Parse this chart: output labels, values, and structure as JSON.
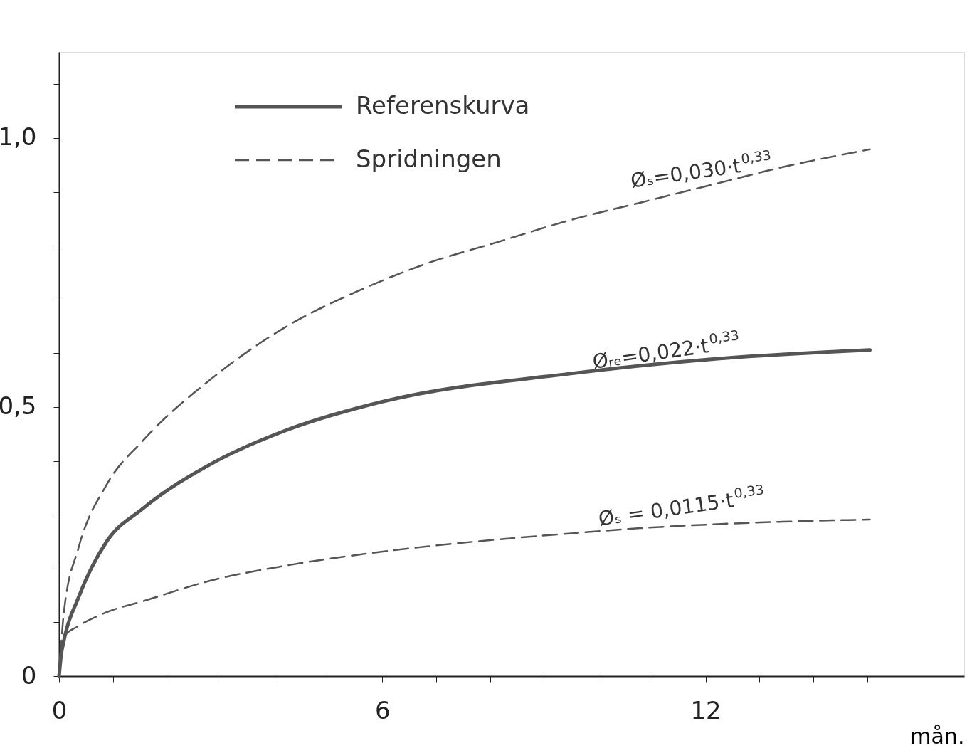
{
  "chart_data": {
    "type": "line",
    "xlabel": "mån.",
    "xlim": [
      0,
      16.8
    ],
    "ylim": [
      0,
      1.16
    ],
    "xticks": [
      0,
      {
        "value": 1,
        "label": null
      },
      {
        "value": 2,
        "label": null
      },
      {
        "value": 3,
        "label": null
      },
      {
        "value": 4,
        "label": null
      },
      {
        "value": 5,
        "label": null
      },
      6,
      {
        "value": 7,
        "label": null
      },
      {
        "value": 8,
        "label": null
      },
      {
        "value": 9,
        "label": null
      },
      {
        "value": 10,
        "label": null
      },
      {
        "value": 11,
        "label": null
      },
      12,
      {
        "value": 13,
        "label": null
      },
      {
        "value": 14,
        "label": null
      },
      {
        "value": 15,
        "label": null
      }
    ],
    "yticks": [
      0,
      {
        "value": 0.1,
        "label": null
      },
      {
        "value": 0.2,
        "label": null
      },
      {
        "value": 0.3,
        "label": null
      },
      {
        "value": 0.4,
        "label": null
      },
      {
        "value": 0.5,
        "label": "0,5"
      },
      {
        "value": 0.6,
        "label": null
      },
      {
        "value": 0.7,
        "label": null
      },
      {
        "value": 0.8,
        "label": null
      },
      {
        "value": 0.9,
        "label": null
      },
      {
        "value": 1.0,
        "label": "1,0"
      },
      {
        "value": 1.1,
        "label": null
      }
    ],
    "grid": false,
    "legend": "top left",
    "marker": "none",
    "series": [
      {
        "name": "Referenskurva",
        "color": "#555555",
        "line_style": "solid",
        "x": [
          0,
          0.04,
          0.09,
          0.36,
          0.89,
          1.55,
          2.87,
          4.19,
          6,
          9.47,
          12.11,
          15.05
        ],
        "values": [
          0,
          0.04,
          0.066,
          0.146,
          0.251,
          0.311,
          0.397,
          0.456,
          0.51,
          0.562,
          0.589,
          0.606
        ]
      },
      {
        "name": "Spridningen",
        "color": "#555555",
        "line_style": "dashed",
        "x": [
          0,
          0.09,
          0.36,
          0.89,
          1.55,
          2.87,
          4.19,
          5.51,
          6.83,
          8.15,
          9.47,
          10.79,
          12.11,
          13.43,
          15.05
        ],
        "values": [
          0,
          0.119,
          0.238,
          0.357,
          0.437,
          0.556,
          0.648,
          0.714,
          0.767,
          0.807,
          0.847,
          0.88,
          0.913,
          0.946,
          0.979
        ]
      },
      {
        "color": "#555555",
        "line_style": "dashed",
        "x": [
          0,
          0.09,
          0.36,
          0.89,
          1.55,
          2.87,
          4.19,
          5.51,
          6.83,
          8.15,
          9.47,
          10.79,
          12.11,
          13.43,
          15.05
        ],
        "values": [
          0,
          0.073,
          0.093,
          0.119,
          0.139,
          0.179,
          0.205,
          0.225,
          0.241,
          0.254,
          0.265,
          0.275,
          0.282,
          0.287,
          0.291
        ]
      }
    ],
    "annotations": [
      "Øₛ=0,030·t$^{0,33}$",
      "Øᵣₑ=0,022·t$^{0,33}$",
      "Øₛ = 0,0115·t$^{0,33}$"
    ]
  }
}
